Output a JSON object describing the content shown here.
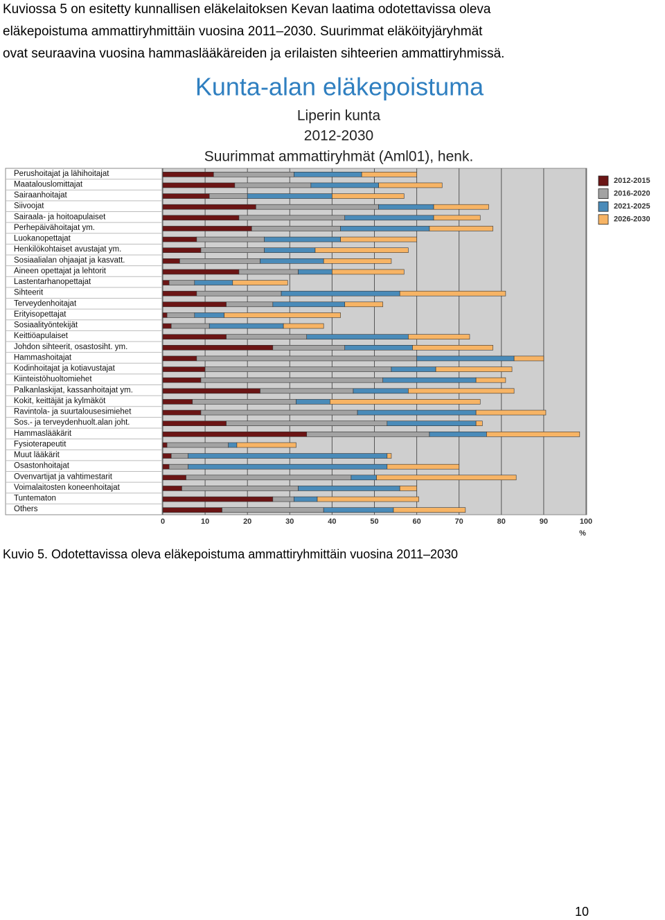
{
  "paragraph_lines": [
    "Kuviossa 5 on esitetty kunnallisen eläkelaitoksen Kevan laatima odotettavissa oleva",
    "eläkepoistuma ammattiryhmittäin vuosina 2011–2030.  Suurimmat eläköityjäryhmät",
    "ovat seuraavina vuosina hammaslääkäreiden ja erilaisten sihteerien ammattiryhmissä."
  ],
  "chart_data": {
    "type": "bar",
    "orientation": "horizontal",
    "stacked": true,
    "title": "Kunta-alan eläkepoistuma",
    "subtitles": [
      "Liperin kunta",
      "2012-2030",
      "Suurimmat ammattiryhmät (Aml01), henk."
    ],
    "x_label": "%",
    "categories": [
      "Perushoitajat ja lähihoitajat",
      "Maatalouslomittajat",
      "Sairaanhoitajat",
      "Siivoojat",
      "Sairaala- ja hoitoapulaiset",
      "Perhepäivähoitajat ym.",
      "Luokanopettajat",
      "Henkilökohtaiset avustajat ym.",
      "Sosiaalialan ohjaajat ja kasvatt.",
      "Aineen opettajat ja lehtorit",
      "Lastentarhanopettajat",
      "Sihteerit",
      "Terveydenhoitajat",
      "Erityisopettajat",
      "Sosiaalityöntekijät",
      "Keittiöapulaiset",
      "Johdon sihteerit, osastosiht. ym.",
      "Hammashoitajat",
      "Kodinhoitajat ja kotiavustajat",
      "Kiinteistöhuoltomiehet",
      "Palkanlaskijat, kassanhoitajat ym.",
      "Kokit, keittäjät ja kylmäköt",
      "Ravintola- ja suurtalousesimiehet",
      "Sos.- ja terveydenhuolt.alan joht.",
      "Hammaslääkärit",
      "Fysioterapeutit",
      "Muut lääkärit",
      "Osastonhoitajat",
      "Ovenvartijat ja vahtimestarit",
      "Voimalaitosten koneenhoitajat",
      "Tuntematon",
      "Others"
    ],
    "series": [
      {
        "name": "2012-2015",
        "color": "#6b1515",
        "values": [
          12,
          17,
          11,
          22,
          18,
          21,
          8,
          9,
          4,
          18,
          1.5,
          8,
          15,
          1,
          2,
          15,
          26,
          8,
          10,
          9,
          23,
          7,
          9,
          15,
          34,
          1,
          2,
          1.5,
          5.5,
          4.5,
          26,
          14
        ]
      },
      {
        "name": "2016-2020",
        "color": "#a3a3a3",
        "values": [
          19,
          18,
          9,
          29,
          25,
          21,
          16,
          15,
          19,
          14,
          6,
          20,
          11,
          6.5,
          9,
          19,
          17,
          52,
          44,
          43,
          22,
          24.5,
          37,
          38,
          29,
          14.5,
          4,
          4.5,
          39,
          27.5,
          5,
          24
        ]
      },
      {
        "name": "2021-2025",
        "color": "#4a8bb9",
        "values": [
          16,
          16,
          20,
          13,
          21,
          21,
          18,
          12,
          15,
          8,
          9,
          28,
          17,
          7,
          17.5,
          24,
          16,
          23,
          10.5,
          22,
          13,
          8,
          28,
          21,
          13.5,
          2,
          47,
          47,
          6,
          24,
          5.5,
          16.5
        ]
      },
      {
        "name": "2026-2030",
        "color": "#f7b465",
        "values": [
          13,
          15,
          17,
          13,
          11,
          15,
          18,
          22,
          16,
          17,
          13,
          25,
          9,
          27.5,
          9.5,
          14.5,
          19,
          7,
          18,
          7,
          25,
          35.5,
          16.5,
          1.5,
          22,
          14,
          1,
          17,
          33,
          4,
          24,
          17
        ]
      }
    ],
    "xlim": [
      0,
      100
    ],
    "xticks": [
      0,
      10,
      20,
      30,
      40,
      50,
      60,
      70,
      80,
      90,
      100
    ],
    "grid": true,
    "legend": "right"
  },
  "caption": "Kuvio 5. Odotettavissa oleva eläkepoistuma ammattiryhmittäin vuosina 2011–2030",
  "page_number": 10
}
